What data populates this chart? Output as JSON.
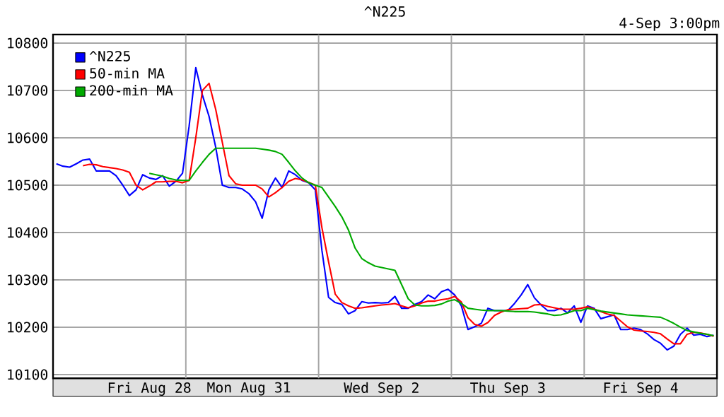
{
  "chart_data": {
    "type": "line",
    "title": "^N225",
    "annotations": [
      "4-Sep 3:00pm"
    ],
    "categories": [
      null,
      null,
      null,
      null,
      null,
      null,
      null,
      null,
      null,
      null,
      null,
      null,
      null,
      null,
      "Fri Aug 28",
      null,
      null,
      null,
      null,
      null,
      null,
      null,
      null,
      null,
      null,
      null,
      null,
      null,
      null,
      "Mon Aug 31",
      null,
      null,
      null,
      null,
      null,
      null,
      null,
      null,
      null,
      null,
      null,
      null,
      null,
      null,
      null,
      null,
      null,
      null,
      null,
      "Wed Sep  2",
      null,
      null,
      null,
      null,
      null,
      null,
      null,
      null,
      null,
      null,
      null,
      null,
      null,
      null,
      null,
      null,
      null,
      null,
      "Thu Sep  3",
      null,
      null,
      null,
      null,
      null,
      null,
      null,
      null,
      null,
      null,
      null,
      null,
      null,
      null,
      null,
      null,
      null,
      null,
      null,
      "Fri Sep  4",
      null,
      null,
      null,
      null,
      null,
      null,
      null,
      null,
      null,
      null,
      null
    ],
    "ylim": [
      10092,
      10818
    ],
    "yticks": [
      10100,
      10200,
      10300,
      10400,
      10500,
      10600,
      10700,
      10800
    ],
    "grid": true,
    "legend": "top left",
    "marker": "none",
    "line_style": "solid",
    "series": [
      {
        "name": "^N225",
        "color": "#0000ff",
        "values": [
          10545,
          10540,
          10538,
          10545,
          10553,
          10555,
          10530,
          10530,
          10530,
          10520,
          10500,
          10478,
          10490,
          10522,
          10515,
          10512,
          10520,
          10498,
          10508,
          10525,
          10625,
          10748,
          10690,
          10645,
          10580,
          10500,
          10495,
          10495,
          10492,
          10482,
          10465,
          10430,
          10490,
          10515,
          10495,
          10530,
          10522,
          10510,
          10505,
          10490,
          10362,
          10263,
          10252,
          10248,
          10228,
          10235,
          10254,
          10251,
          10252,
          10251,
          10252,
          10265,
          10240,
          10240,
          10248,
          10254,
          10268,
          10260,
          10275,
          10280,
          10268,
          10245,
          10195,
          10201,
          10208,
          10240,
          10235,
          10235,
          10235,
          10250,
          10268,
          10290,
          10262,
          10247,
          10235,
          10235,
          10240,
          10230,
          10245,
          10210,
          10245,
          10240,
          10218,
          10222,
          10226,
          10195,
          10195,
          10198,
          10195,
          10186,
          10174,
          10166,
          10152,
          10160,
          10185,
          10198,
          10183,
          10185,
          10180,
          10183
        ]
      },
      {
        "name": "50-min MA",
        "color": "#ff0000",
        "values": [
          null,
          null,
          null,
          null,
          10541,
          10544,
          10543,
          10539,
          10537,
          10535,
          10532,
          10527,
          10500,
          10490,
          10498,
          10507,
          10507,
          10508,
          10508,
          10505,
          10510,
          10600,
          10700,
          10715,
          10660,
          10590,
          10520,
          10503,
          10500,
          10500,
          10500,
          10492,
          10475,
          10484,
          10495,
          10508,
          10514,
          10511,
          10506,
          10500,
          10410,
          10338,
          10270,
          10252,
          10245,
          10240,
          10241,
          10243,
          10245,
          10247,
          10248,
          10250,
          10245,
          10241,
          10245,
          10251,
          10255,
          10255,
          10258,
          10260,
          10265,
          10253,
          10220,
          10206,
          10202,
          10210,
          10225,
          10232,
          10237,
          10238,
          10239,
          10240,
          10247,
          10248,
          10244,
          10241,
          10238,
          10238,
          10238,
          10240,
          10243,
          10238,
          10233,
          10228,
          10225,
          10213,
          10201,
          10194,
          10192,
          10191,
          10189,
          10186,
          10175,
          10165,
          10165,
          10185,
          10189,
          10188,
          10185,
          10181
        ]
      },
      {
        "name": "200-min MA",
        "color": "#00aa00",
        "values": [
          null,
          null,
          null,
          null,
          null,
          null,
          null,
          null,
          null,
          null,
          null,
          null,
          null,
          null,
          10525,
          10522,
          10519,
          10514,
          10511,
          10510,
          10510,
          10530,
          10548,
          10565,
          10578,
          10578,
          10578,
          10578,
          10578,
          10578,
          10578,
          10576,
          10574,
          10571,
          10565,
          10548,
          10530,
          10515,
          10505,
          10500,
          10495,
          10475,
          10455,
          10433,
          10405,
          10367,
          10345,
          10336,
          10329,
          10326,
          10323,
          10320,
          10290,
          10260,
          10247,
          10245,
          10245,
          10246,
          10249,
          10255,
          10258,
          10250,
          10240,
          10238,
          10236,
          10235,
          10235,
          10235,
          10234,
          10233,
          10233,
          10233,
          10232,
          10230,
          10228,
          10225,
          10226,
          10230,
          10235,
          10235,
          10240,
          10237,
          10234,
          10232,
          10230,
          10228,
          10226,
          10225,
          10224,
          10223,
          10222,
          10221,
          10215,
          10208,
          10200,
          10193,
          10190,
          10187,
          10185,
          10182
        ]
      }
    ]
  }
}
